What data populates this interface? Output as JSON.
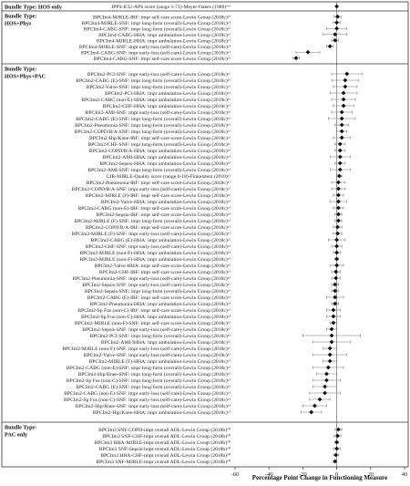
{
  "chart_data": {
    "type": "forest",
    "xlabel": "Percentage Point Change in Functioning Measure",
    "xlim": [
      -60,
      40
    ],
    "xticks": [
      -60,
      -40,
      -20,
      0,
      20,
      40
    ],
    "grid": false,
    "sections": [
      {
        "title_lines": [
          "Bundle Type: HOS only"
        ],
        "rows": [
          {
            "label": "IPPS-ICU-APS score (range 1-71)-Meyer-Oakes (1988)¹ᵃ¹",
            "est": 0,
            "lo": 0,
            "hi": 0
          }
        ]
      },
      {
        "title_lines": [
          "Bundle Type:",
          "HOS+Phys"
        ],
        "rows": [
          {
            "label": "BPCIm4-MJRLE-IRF: impr self-care score-Lewin Group (2018c)ᵃ¹",
            "est": 0.5,
            "lo": -1.5,
            "hi": 2.5
          },
          {
            "label": "BPCIm4-MJRLE-SNF: impr long-form (overall)-Lewin Group (2018c)ᵃ¹",
            "est": 0,
            "lo": -2,
            "hi": 2
          },
          {
            "label": "BPCIm4-CABG-SNF: impr long-form (overall)-Lewin Group (2018c)ᵃ¹",
            "est": 0,
            "lo": -6,
            "hi": 6
          },
          {
            "label": "BPCIm4-CABG-HHA: impr ambulation-Lewin Group (2018c)ᵃ¹",
            "est": -1,
            "lo": -8,
            "hi": 6
          },
          {
            "label": "BPCIm4-MJRLE-HHA: impr ambulation-Lewin Group (2018c)ᵃ¹",
            "est": -1,
            "lo": -3,
            "hi": 1
          },
          {
            "label": "BPCIm4-MJRLE-SNF: impr early-loss (self-care)-Lewin Group (2018c)ᵃ¹",
            "est": -4,
            "lo": -6,
            "hi": -2
          },
          {
            "label": "BPCIm4-CABG-SNF: impr early-loss (self-care)-Lewin Group (2018c)ᵃ¹",
            "est": -17,
            "lo": -24,
            "hi": -10
          },
          {
            "label": "BPCIm4-CABG-SNF: impr self-care score-Lewin Group (2018c)ᵃ¹",
            "est": -24,
            "lo": -26,
            "hi": -22
          }
        ]
      },
      {
        "title_lines": [
          "Bundle Type:",
          "HOS+Phys+PAC"
        ],
        "rows": [
          {
            "label": "BPCIm2-PCI-SNF: impr early-loss (self-care)-Lewin Group (2018c)ᵃ¹",
            "est": 6,
            "lo": -3,
            "hi": 15
          },
          {
            "label": "BPCIm2-CABG (E)-SNF: impr long-form (overall)-Lewin Group (2018c)ᵃ¹",
            "est": 5,
            "lo": -3,
            "hi": 13
          },
          {
            "label": "BPCIm2-Valve-SNF: impr long-form (overall)-Lewin Group (2018c)ᵃ¹",
            "est": 5,
            "lo": -2,
            "hi": 12
          },
          {
            "label": "BPCIm2-PCI-HHA: impr ambulation-Lewin Group (2018c)ᵃ¹",
            "est": 4,
            "lo": -4,
            "hi": 12
          },
          {
            "label": "BPCIm2-CABG (non-E)-HHA: impr ambulation-Lewin Group (2018c)ᵃ¹",
            "est": 4,
            "lo": -3,
            "hi": 11
          },
          {
            "label": "BPCIm2-CHF-HHA: impr ambulation-Lewin Group (2018c)ᵃ¹",
            "est": 4,
            "lo": -2,
            "hi": 10
          },
          {
            "label": "BPCIm2-AMI-SNF: impr early-loss (self-care)-Lewin Group (2018c)ᵃ¹",
            "est": 3,
            "lo": -3,
            "hi": 9
          },
          {
            "label": "BPCIm2-CABG (E)-SNF: impr long-form (overall)-Lewin Group (2018c)ᵃ¹",
            "est": 3,
            "lo": -5,
            "hi": 11
          },
          {
            "label": "BPCIm2-Pneumonia-SNF: impr long-form (overall)-Lewin Group (2018c)ᵃ¹",
            "est": 3,
            "lo": -1,
            "hi": 7
          },
          {
            "label": "BPCIm2-COPD/B/A-SNF: impr long-form (overall)-Lewin Group (2018c)ᵃ¹",
            "est": 3,
            "lo": 0,
            "hi": 6
          },
          {
            "label": "BPCIm2-Hip/Knee-IRF: impr self-care score-Lewin Group (2018c)ᵃ¹",
            "est": 3,
            "lo": -2,
            "hi": 8
          },
          {
            "label": "BPCIm2-CHF-SNF: impr long-form (overall)-Lewin Group (2018c)ᵃ¹",
            "est": 2,
            "lo": -1,
            "hi": 5
          },
          {
            "label": "BPCIm2-COPD/B/A-HHA: impr ambulation-Lewin Group (2018c)ᵃ¹",
            "est": 2,
            "lo": -1,
            "hi": 5
          },
          {
            "label": "BPCIm2-AMI-HHA: impr ambulation-Lewin Group (2018c)ᵃ¹",
            "est": 2,
            "lo": -4,
            "hi": 8
          },
          {
            "label": "BPCIm2-Sepsis-HHA: impr ambulation-Lewin Group (2018c)ᵃ¹",
            "est": 2,
            "lo": -1,
            "hi": 5
          },
          {
            "label": "BPCIm2-AMI-SNF: impr long-form (overall)-Lewin Group (2018c)ᵃ¹",
            "est": 2,
            "lo": -4,
            "hi": 8
          },
          {
            "label": "CJR-MJRLE-Quality score (range 0-18)-Finkelstein (2018)ᵃ¹",
            "est": 1.5,
            "lo": 0,
            "hi": 3
          },
          {
            "label": "BPCIm2-Pneumonia-IRF: impr self-care score-Lewin Group (2018c)ᵃ¹",
            "est": 1,
            "lo": -3,
            "hi": 5
          },
          {
            "label": "BPCIm2-COPD/B/A-SNF: impr early-loss (self-care)-Lewin Group (2018c)ᵃ¹",
            "est": 1,
            "lo": -3,
            "hi": 5
          },
          {
            "label": "BPCIm2-MJRLE (F)-IRF: impr self-care score-Lewin Group (2018c)ᵃ¹",
            "est": 1,
            "lo": -2,
            "hi": 4
          },
          {
            "label": "BPCIm2-Valve-HHA: impr ambulation-Lewin Group (2018c)ᵃ¹",
            "est": 1,
            "lo": -4,
            "hi": 6
          },
          {
            "label": "BPCIm2-CABG (non-E)-IRF: impr self-care score-Lewin Group (2018c)ᵃ¹",
            "est": 1,
            "lo": -2,
            "hi": 4
          },
          {
            "label": "BPCIm2-Sepsis-IRF: impr self-care score-Lewin Group (2018c)ᵃ¹",
            "est": 1,
            "lo": -1,
            "hi": 3
          },
          {
            "label": "BPCIm2-MJRLE (F)-SNF: impr long-form (overall)-Lewin Group (2018c)ᵃ¹",
            "est": 1,
            "lo": -1,
            "hi": 3
          },
          {
            "label": "BPCIm2-COPD/B/A-IRF: impr self-care score-Lewin Group (2018c)ᵃ¹",
            "est": 0.5,
            "lo": -2,
            "hi": 3
          },
          {
            "label": "BPCIm2-MJRLE (F)-SNF: impr early-loss (self-care)-Lewin Group (2018c)ᵃ¹",
            "est": 0.5,
            "lo": -2,
            "hi": 3
          },
          {
            "label": "BPCIm2-CABG (E)-HHA: impr ambulation-Lewin Group (2018c)ᵃ¹",
            "est": 0,
            "lo": -5,
            "hi": 5
          },
          {
            "label": "BPCIm2-CHF-SNF: impr early-loss (self-care)-Lewin Group (2018c)ᵃ¹",
            "est": 0,
            "lo": -3,
            "hi": 3
          },
          {
            "label": "BPCIm2-MJRLE (non-F)-HHA: impr ambulation-Lewin Group (2018c)ᵃ¹",
            "est": 0,
            "lo": -2,
            "hi": 2
          },
          {
            "label": "BPCIm2-MJRLE (non-F)-HHA: impr ambulation-Lewin Group (2018c)ᵃ¹",
            "est": 0,
            "lo": -1,
            "hi": 1
          },
          {
            "label": "BPCIm2-Valve-HHA: impr self-care score-Lewin Group (2018c)ᵃ¹",
            "est": 0,
            "lo": -4,
            "hi": 4
          },
          {
            "label": "BPCIm2-CHF-IRF: impr self-care score-Lewin Group (2018c)ᵃ¹",
            "est": -0.5,
            "lo": -3,
            "hi": 2
          },
          {
            "label": "BPCIm2-Pneumonia-SNF: impr early-loss (self-care)-Lewin Group (2018c)ᵃ¹",
            "est": -0.5,
            "lo": -3,
            "hi": 2
          },
          {
            "label": "BPCIm2-Sepsis-SNF: impr early-loss (self-care)-Lewin Group (2018c)ᵃ¹",
            "est": -1,
            "lo": -3,
            "hi": 1
          },
          {
            "label": "BPCIm2-Sepsis-SNF: impr long-form (overall)-Lewin Group (2018c)ᵃ¹",
            "est": -1,
            "lo": -3,
            "hi": 1
          },
          {
            "label": "BPCIm2-CABG (E)-IRF: impr self-care score-Lewin Group (2018c)ᵃ¹",
            "est": -1,
            "lo": -6,
            "hi": 4
          },
          {
            "label": "BPCIm2-Pneumonia-HHA: impr ambulation-Lewin Group (2018c)ᵃ¹",
            "est": -1,
            "lo": -3,
            "hi": 1
          },
          {
            "label": "BPCIm2-Sp Fus (non-C)-IRF: impr self-care score-Lewin Group (2018c)ᵃ¹",
            "est": -2,
            "lo": -6,
            "hi": 2
          },
          {
            "label": "BPCIm2-Sp Fus (non-C)-HHA: impr ambulation-Lewin Group (2018c)ᵃ¹",
            "est": -2,
            "lo": -6,
            "hi": 2
          },
          {
            "label": "BPCIm2-MJRLE (non-F)-SNF: impr self-care score-Lewin Group (2018c)ᵃ¹",
            "est": -2,
            "lo": -4,
            "hi": 0
          },
          {
            "label": "BPCIm2-Sepsis-SNF: impr early-loss (self-care)-Lewin Group (2018c)ᵃ¹",
            "est": -3,
            "lo": -6,
            "hi": 0
          },
          {
            "label": "BPCIm2-PCI-SNF: impr long-form (overall)-Lewin Group (2018c)ᵃ¹",
            "est": -3,
            "lo": -20,
            "hi": 14
          },
          {
            "label": "BPCIm2-AMI-IHHA: impr ambulation-Lewin Group (2018c)ᵃ¹",
            "est": -3,
            "lo": -14,
            "hi": 8
          },
          {
            "label": "BPCIm2-MJRLE (non-F)-SNF: impr early-loss (self-care)-Lewin Group (2018c)ᵃ¹",
            "est": -4,
            "lo": -8,
            "hi": 0
          },
          {
            "label": "BPCIm2-Valve-SNF: impr early-loss (self-care)-Lewin Group (2018c)ᵃ¹",
            "est": -4,
            "lo": -14,
            "hi": 6
          },
          {
            "label": "BPCIm2-MJRLE (F)-HHA: impr ambulation-Lewin Group (2018c)ᵃ¹",
            "est": -4,
            "lo": -8,
            "hi": 0
          },
          {
            "label": "BPCIm2-CABG (non-E)-SNF: impr long-form (overall)-Lewin Group (2018c)ᵃ¹",
            "est": -5,
            "lo": -14,
            "hi": 4
          },
          {
            "label": "BPCIm2-Hip/Knee-SNF: impr long-form (overall)-Lewin Group (2018c)ᵃ¹",
            "est": -6,
            "lo": -12,
            "hi": 0
          },
          {
            "label": "BPCIm2-Sp Fus (non-C)-SNF: impr long-form (overall)-Lewin Group (2018c)ᵃ¹",
            "est": -6,
            "lo": -14,
            "hi": 2
          },
          {
            "label": "BPCIm2-CABG (E)-SNF: impr long-form (overall)-Lewin Group (2018c)ᵃ¹",
            "est": -7,
            "lo": -14,
            "hi": 0
          },
          {
            "label": "BPCIm2-CABG (non-E)-SNF: impr early-loss (self-care)-Lewin Group (2018c)ᵃ¹",
            "est": -7,
            "lo": -16,
            "hi": 2
          },
          {
            "label": "BPCIm2-Sp Fus (non-C)-SNF: impr early-loss (self-care)-Lewin Group (2018c)ᵃ¹",
            "est": -10,
            "lo": -16,
            "hi": -4
          },
          {
            "label": "BPCIm2-Hip/Knee-SNF: impr early-loss (self-care)-Lewin Group (2018c)ᵃ¹",
            "est": -13,
            "lo": -20,
            "hi": -6
          },
          {
            "label": "BPCIm2-Hip/Knee-HHA: impr ambulation-Lewin Group (2018c)ᵃ¹",
            "est": -15,
            "lo": -21,
            "hi": -9
          }
        ]
      },
      {
        "title_lines": [
          "Bundle Type:",
          "PAC only"
        ],
        "rows": [
          {
            "label": "BPCIm3 SNF-COPD-impr overall ADL-Lewin Group (2018b)¹⁰",
            "est": 1,
            "lo": -1,
            "hi": 3
          },
          {
            "label": "BPCIm3 SNF-CHF-impr overall ADL-Lewin Group (2018b)¹⁰",
            "est": 0.5,
            "lo": -1.5,
            "hi": 2.5
          },
          {
            "label": "BPCIm3 HHA-MJRLE-impr overall ADL-Lewin Group (2018b)¹⁰",
            "est": 0,
            "lo": -1,
            "hi": 1
          },
          {
            "label": "BPCIm3 SNF-Sepsis-impr overall ADL-Lewin Group (2018b)¹⁰",
            "est": 0,
            "lo": -2,
            "hi": 2
          },
          {
            "label": "BPCIm3 HHA-CHF-impr overall ADL-Lewin Group (2018b)¹⁰",
            "est": -0.5,
            "lo": -2,
            "hi": 1
          },
          {
            "label": "BPCIm3 SNF-MJRLE-impr overall ADL-Lewin Group (2018b)¹⁰",
            "est": -1,
            "lo": -2,
            "hi": 0
          }
        ]
      }
    ]
  }
}
